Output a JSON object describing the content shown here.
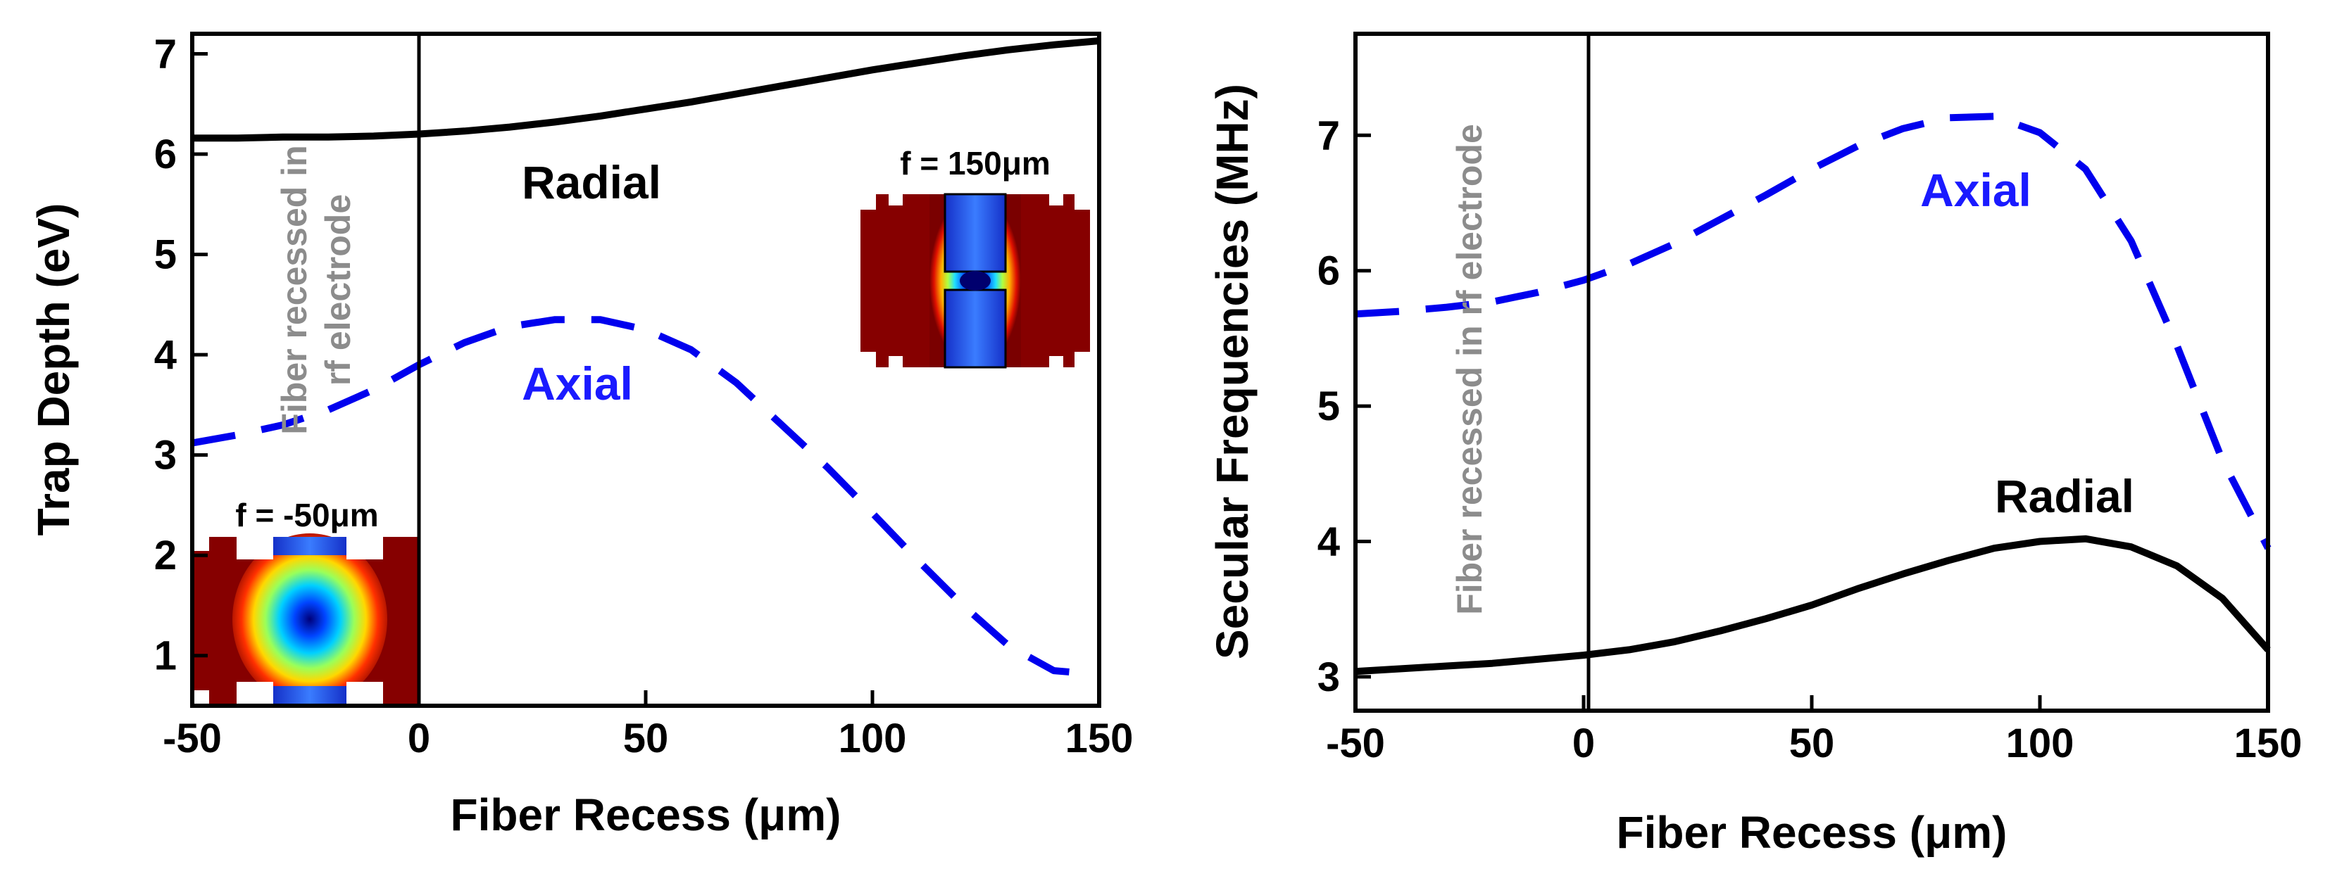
{
  "chart_data": [
    {
      "type": "line",
      "panel": "left",
      "xlabel": "Fiber Recess (μm)",
      "ylabel": "Trap Depth (eV)",
      "xlim": [
        -50,
        150
      ],
      "ylim": [
        0.5,
        7.2
      ],
      "x_ticks": [
        -50,
        0,
        50,
        100,
        150
      ],
      "x_tick_labels": [
        "-50",
        "0",
        "50",
        "100",
        "150"
      ],
      "y_ticks": [
        1,
        2,
        3,
        4,
        5,
        6,
        7
      ],
      "y_tick_labels": [
        "1",
        "2",
        "3",
        "4",
        "5",
        "6",
        "7"
      ],
      "reference_line_x": 0,
      "series": [
        {
          "name": "Radial",
          "style": "solid",
          "color": "#000000",
          "x": [
            -50,
            -40,
            -30,
            -20,
            -10,
            0,
            10,
            20,
            30,
            40,
            50,
            60,
            70,
            80,
            90,
            100,
            110,
            120,
            130,
            140,
            150
          ],
          "values": [
            6.16,
            6.16,
            6.17,
            6.17,
            6.18,
            6.2,
            6.23,
            6.27,
            6.32,
            6.38,
            6.45,
            6.52,
            6.6,
            6.68,
            6.76,
            6.84,
            6.91,
            6.98,
            7.04,
            7.09,
            7.13
          ]
        },
        {
          "name": "Axial",
          "style": "dashed",
          "color": "#0000ee",
          "x": [
            -50,
            -40,
            -30,
            -20,
            -10,
            0,
            10,
            20,
            30,
            40,
            50,
            60,
            70,
            80,
            90,
            100,
            110,
            120,
            130,
            140,
            148
          ],
          "values": [
            3.12,
            3.2,
            3.3,
            3.45,
            3.65,
            3.9,
            4.12,
            4.28,
            4.35,
            4.35,
            4.25,
            4.05,
            3.72,
            3.3,
            2.88,
            2.42,
            1.95,
            1.5,
            1.1,
            0.85,
            0.82
          ]
        }
      ],
      "annotations": [
        {
          "text": "Radial",
          "color": "#000000"
        },
        {
          "text": "Axial",
          "color": "#1a1aff"
        },
        {
          "text_lines": [
            "Fiber recessed in",
            "rf electrode"
          ],
          "color": "#8c8c8c"
        }
      ],
      "insets": [
        {
          "label": "f = 150μm"
        },
        {
          "label": "f = -50μm"
        }
      ]
    },
    {
      "type": "line",
      "panel": "right",
      "xlabel": "Fiber Recess (μm)",
      "ylabel": "Secular Frequencies (MHz)",
      "xlim": [
        -50,
        150
      ],
      "ylim": [
        2.75,
        7.75
      ],
      "x_ticks": [
        -50,
        0,
        50,
        100,
        150
      ],
      "x_tick_labels": [
        "-50",
        "0",
        "50",
        "100",
        "150"
      ],
      "y_ticks": [
        3,
        4,
        5,
        6,
        7
      ],
      "y_tick_labels": [
        "3",
        "4",
        "5",
        "6",
        "7"
      ],
      "reference_line_x": 0,
      "series": [
        {
          "name": "Radial",
          "style": "solid",
          "color": "#000000",
          "x": [
            -50,
            -40,
            -30,
            -20,
            -10,
            0,
            10,
            20,
            30,
            40,
            50,
            60,
            70,
            80,
            90,
            100,
            110,
            120,
            130,
            140,
            150
          ],
          "values": [
            3.04,
            3.06,
            3.08,
            3.1,
            3.13,
            3.16,
            3.2,
            3.26,
            3.34,
            3.43,
            3.53,
            3.65,
            3.76,
            3.86,
            3.95,
            4.0,
            4.02,
            3.96,
            3.82,
            3.58,
            3.2
          ]
        },
        {
          "name": "Axial",
          "style": "dashed",
          "color": "#0000ee",
          "x": [
            -50,
            -40,
            -30,
            -20,
            -10,
            0,
            10,
            20,
            30,
            40,
            50,
            60,
            70,
            80,
            90,
            100,
            110,
            120,
            130,
            140,
            150
          ],
          "values": [
            5.68,
            5.7,
            5.73,
            5.77,
            5.84,
            5.93,
            6.05,
            6.2,
            6.38,
            6.56,
            6.75,
            6.92,
            7.05,
            7.13,
            7.14,
            7.02,
            6.75,
            6.22,
            5.45,
            4.6,
            3.95
          ]
        }
      ],
      "annotations": [
        {
          "text": "Axial",
          "color": "#1a1aff"
        },
        {
          "text": "Radial",
          "color": "#000000"
        },
        {
          "text_lines": [
            "Fiber recessed in rf electrode"
          ],
          "color": "#8c8c8c"
        }
      ]
    }
  ]
}
